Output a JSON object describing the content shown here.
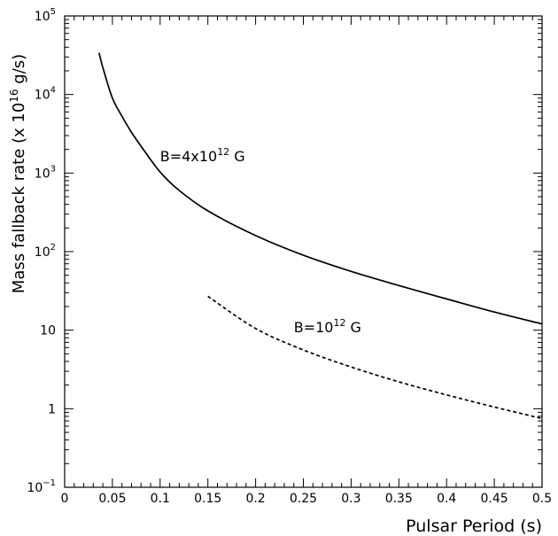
{
  "chart_data": {
    "type": "line",
    "xlabel": "Pulsar Period (s)",
    "ylabel": {
      "prefix": "Mass fallback rate (x 10",
      "exponent": "16",
      "suffix": " g/s)"
    },
    "xlim": [
      0,
      0.5
    ],
    "ylim": [
      0.1,
      100000
    ],
    "yscale": "log",
    "x_ticks": [
      {
        "value": 0,
        "label": "0"
      },
      {
        "value": 0.05,
        "label": "0.05"
      },
      {
        "value": 0.1,
        "label": "0.1"
      },
      {
        "value": 0.15,
        "label": "0.15"
      },
      {
        "value": 0.2,
        "label": "0.2"
      },
      {
        "value": 0.25,
        "label": "0.25"
      },
      {
        "value": 0.3,
        "label": "0.3"
      },
      {
        "value": 0.35,
        "label": "0.35"
      },
      {
        "value": 0.4,
        "label": "0.4"
      },
      {
        "value": 0.45,
        "label": "0.45"
      },
      {
        "value": 0.5,
        "label": "0.5"
      }
    ],
    "y_ticks": [
      {
        "value": 0.1,
        "base": "10",
        "exp": "−1"
      },
      {
        "value": 1,
        "base": "1",
        "exp": ""
      },
      {
        "value": 10,
        "base": "10",
        "exp": ""
      },
      {
        "value": 100,
        "base": "10",
        "exp": "2"
      },
      {
        "value": 1000,
        "base": "10",
        "exp": "3"
      },
      {
        "value": 10000,
        "base": "10",
        "exp": "4"
      },
      {
        "value": 100000,
        "base": "10",
        "exp": "5"
      }
    ],
    "series": [
      {
        "name": "B=4x10¹² G",
        "style": "solid",
        "x": [
          0.036,
          0.04,
          0.05,
          0.06,
          0.07,
          0.08,
          0.1,
          0.12,
          0.15,
          0.2,
          0.25,
          0.3,
          0.35,
          0.4,
          0.45,
          0.5
        ],
        "y": [
          34000,
          22000,
          9000,
          5300,
          3300,
          2200,
          1030,
          600,
          330,
          160,
          90,
          56,
          37,
          25,
          17,
          12
        ]
      },
      {
        "name": "B=10¹² G",
        "style": "dashed",
        "x": [
          0.15,
          0.2,
          0.25,
          0.3,
          0.35,
          0.4,
          0.45,
          0.5
        ],
        "y": [
          27,
          10.5,
          5.6,
          3.4,
          2.2,
          1.5,
          1.05,
          0.75
        ]
      }
    ],
    "annotations": [
      {
        "base": "B=4x10",
        "exp": "12",
        "suffix": " G",
        "x": 0.1,
        "y": 1420
      },
      {
        "base": "B=10",
        "exp": "12",
        "suffix": " G",
        "x": 0.24,
        "y": 9.4
      }
    ],
    "grid": false,
    "legend": "none"
  }
}
